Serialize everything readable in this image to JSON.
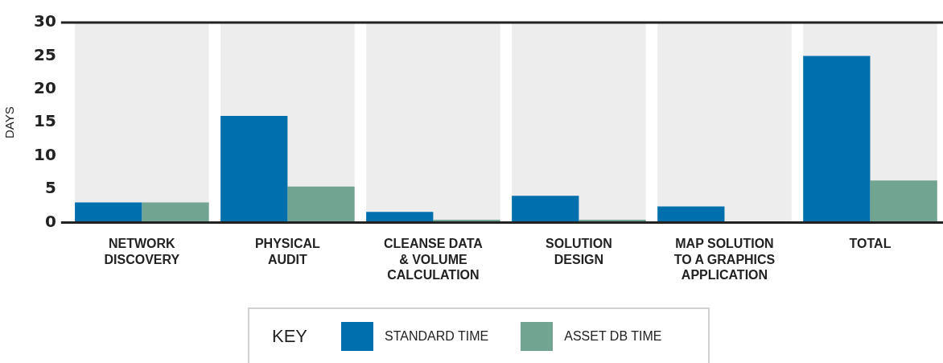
{
  "chart_data": {
    "type": "bar",
    "ylabel": "DAYS",
    "legend_title": "KEY",
    "legend": "bottom",
    "grid": false,
    "categories": [
      "NETWORK DISCOVERY",
      "PHYSICAL AUDIT",
      "CLEANSE DATA & VOLUME CALCULATION",
      "SOLUTION DESIGN",
      "MAP SOLUTION TO A GRAPHICS APPLICATION",
      "TOTAL"
    ],
    "series": [
      {
        "name": "STANDARD TIME",
        "color": "#0070ad",
        "values": [
          3,
          16,
          1.6,
          4,
          2.4,
          25
        ]
      },
      {
        "name": "ASSET DB TIME",
        "color": "#71a591",
        "values": [
          3,
          5.4,
          0.4,
          0.4,
          0,
          6.3
        ]
      }
    ],
    "bands": [
      {
        "axis": "x",
        "from": "NETWORK DISCOVERY",
        "to": "NETWORK DISCOVERY",
        "color": "#ededed"
      },
      {
        "axis": "x",
        "from": "PHYSICAL AUDIT",
        "to": "PHYSICAL AUDIT",
        "color": "#ededed"
      },
      {
        "axis": "x",
        "from": "CLEANSE DATA & VOLUME CALCULATION",
        "to": "CLEANSE DATA & VOLUME CALCULATION",
        "color": "#ededed"
      },
      {
        "axis": "x",
        "from": "SOLUTION DESIGN",
        "to": "SOLUTION DESIGN",
        "color": "#ededed"
      },
      {
        "axis": "x",
        "from": "MAP SOLUTION TO A GRAPHICS APPLICATION",
        "to": "MAP SOLUTION TO A GRAPHICS APPLICATION",
        "color": "#ededed"
      },
      {
        "axis": "x",
        "from": "TOTAL",
        "to": "TOTAL",
        "color": "#ededed"
      }
    ],
    "ylim": [
      0,
      30
    ],
    "yticks": [
      0,
      5,
      10,
      15,
      20,
      25,
      30
    ]
  }
}
